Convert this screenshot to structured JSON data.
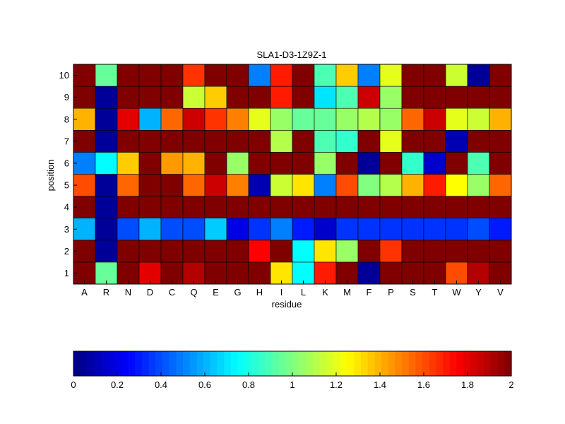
{
  "chart_data": {
    "type": "heatmap",
    "title": "SLA1-D3-1Z9Z-1",
    "xlabel": "residue",
    "ylabel": "position",
    "categories": [
      "A",
      "R",
      "N",
      "D",
      "C",
      "Q",
      "E",
      "G",
      "H",
      "I",
      "L",
      "K",
      "M",
      "F",
      "P",
      "S",
      "T",
      "W",
      "Y",
      "V"
    ],
    "positions": [
      "1",
      "2",
      "3",
      "4",
      "5",
      "6",
      "7",
      "8",
      "9",
      "10"
    ],
    "clim": [
      0,
      2
    ],
    "colormap": "jet",
    "colorbar_ticks": [
      "0",
      "0.2",
      "0.4",
      "0.6",
      "0.8",
      "1",
      "1.2",
      "1.4",
      "1.6",
      "1.8",
      "2"
    ],
    "values": [
      [
        2.0,
        0.95,
        2.0,
        1.8,
        2.0,
        1.9,
        2.0,
        2.0,
        2.0,
        1.3,
        0.75,
        1.7,
        2.0,
        0.05,
        2.0,
        2.0,
        2.0,
        1.6,
        1.9,
        2.0
      ],
      [
        2.0,
        0.05,
        2.0,
        2.0,
        2.0,
        2.0,
        2.0,
        2.0,
        1.75,
        2.0,
        0.75,
        1.3,
        1.05,
        2.0,
        1.65,
        2.0,
        2.0,
        2.0,
        2.0,
        2.0
      ],
      [
        0.6,
        0.05,
        0.4,
        0.6,
        0.4,
        0.4,
        0.65,
        0.2,
        0.35,
        0.5,
        0.3,
        0.15,
        0.35,
        0.35,
        0.35,
        0.35,
        0.35,
        0.35,
        0.4,
        0.3
      ],
      [
        2.0,
        0.05,
        2.0,
        2.0,
        2.0,
        2.0,
        2.0,
        2.0,
        2.0,
        2.0,
        2.0,
        2.0,
        2.0,
        2.0,
        2.0,
        2.0,
        2.0,
        2.0,
        2.0,
        2.0
      ],
      [
        1.6,
        0.05,
        1.55,
        2.0,
        2.0,
        1.55,
        1.85,
        1.5,
        0.1,
        1.15,
        1.3,
        0.5,
        1.6,
        1.0,
        1.1,
        1.4,
        1.7,
        1.25,
        1.05,
        1.55
      ],
      [
        0.5,
        0.75,
        1.35,
        2.0,
        1.45,
        1.4,
        2.0,
        1.05,
        2.0,
        2.0,
        2.0,
        1.05,
        2.0,
        0.05,
        2.0,
        0.85,
        0.15,
        2.0,
        0.9,
        2.0
      ],
      [
        2.0,
        0.05,
        2.0,
        2.0,
        2.0,
        2.0,
        2.0,
        2.0,
        2.0,
        1.1,
        2.0,
        0.9,
        0.85,
        2.0,
        1.2,
        2.0,
        2.0,
        0.1,
        2.0,
        2.0
      ],
      [
        1.4,
        0.05,
        1.8,
        0.6,
        1.55,
        1.85,
        1.65,
        1.5,
        1.2,
        1.05,
        0.95,
        0.95,
        1.05,
        1.1,
        1.05,
        1.55,
        1.85,
        1.2,
        1.15,
        1.4
      ],
      [
        2.0,
        0.05,
        2.0,
        2.0,
        2.0,
        1.15,
        1.35,
        2.0,
        2.0,
        1.7,
        2.0,
        0.7,
        0.9,
        1.85,
        1.05,
        2.0,
        2.0,
        2.0,
        2.0,
        2.0
      ],
      [
        2.0,
        0.95,
        2.0,
        2.0,
        2.0,
        1.65,
        2.0,
        2.0,
        0.5,
        1.7,
        2.0,
        0.9,
        1.35,
        0.5,
        1.2,
        2.0,
        2.0,
        1.15,
        0.05,
        2.0
      ]
    ]
  }
}
